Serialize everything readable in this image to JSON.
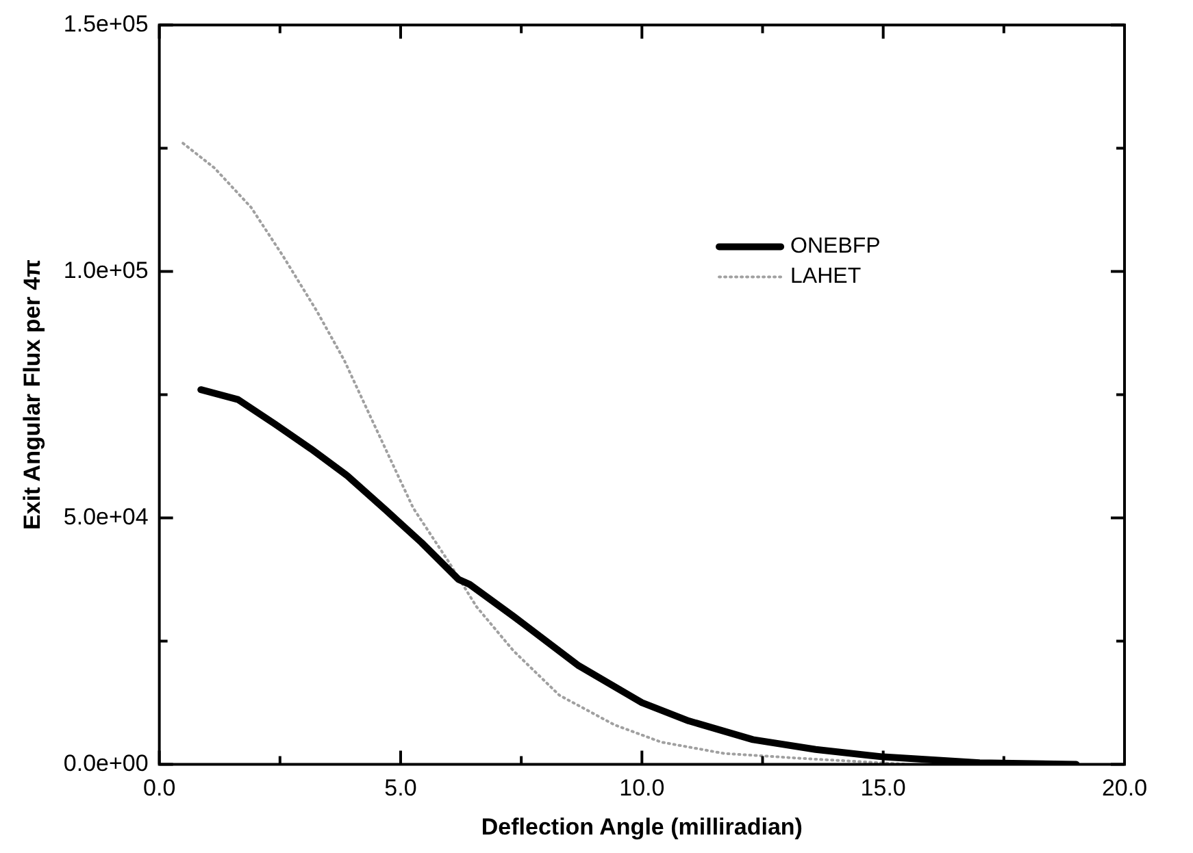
{
  "chart_data": {
    "type": "line",
    "xlabel": "Deflection Angle (milliradian)",
    "ylabel": "Exit Angular Flux per 4π",
    "xlim": [
      0,
      20
    ],
    "xticks": [
      {
        "value": 0,
        "label": "0.0"
      },
      {
        "value": 2.5,
        "label": null
      },
      {
        "value": 5,
        "label": "5.0"
      },
      {
        "value": 7.5,
        "label": null
      },
      {
        "value": 10,
        "label": "10.0"
      },
      {
        "value": 12.5,
        "label": null
      },
      {
        "value": 15,
        "label": "15.0"
      },
      {
        "value": 17.5,
        "label": null
      },
      {
        "value": 20,
        "label": "20.0"
      }
    ],
    "ylim": [
      0,
      150000
    ],
    "yticks": [
      {
        "value": 0,
        "label": "0.0e+00"
      },
      {
        "value": 25000,
        "label": null
      },
      {
        "value": 50000,
        "label": "5.0e+04"
      },
      {
        "value": 75000,
        "label": null
      },
      {
        "value": 100000,
        "label": "1.0e+05"
      },
      {
        "value": 125000,
        "label": null
      },
      {
        "value": 150000,
        "label": "1.5e+05"
      }
    ],
    "grid": false,
    "legend": "top right",
    "marker": "none",
    "series": [
      {
        "name": "ONEBFP",
        "color": "#000000",
        "line_style": "solid",
        "x": [
          0.86,
          1.63,
          2.4,
          3.14,
          3.9,
          4.7,
          5.43,
          6.2,
          6.43,
          7.34,
          8.69,
          10,
          10.97,
          12.3,
          13.6,
          15,
          17,
          19
        ],
        "values": [
          76000,
          74000,
          69000,
          64000,
          58500,
          51500,
          45000,
          37500,
          36500,
          30000,
          20000,
          12500,
          8800,
          5000,
          3000,
          1500,
          300,
          0
        ]
      },
      {
        "name": "LAHET",
        "color": "#a0a0a0",
        "line_style": "dotted",
        "x": [
          0.49,
          1.14,
          1.9,
          2.57,
          3.26,
          3.83,
          4.4,
          5.26,
          6,
          6.57,
          7.34,
          8.29,
          9.43,
          10.4,
          11.7,
          13.3,
          15.5
        ],
        "values": [
          126000,
          121000,
          113000,
          103000,
          92000,
          82000,
          70000,
          52000,
          41000,
          32000,
          23000,
          14000,
          8000,
          4500,
          2200,
          1200,
          0
        ]
      }
    ]
  }
}
